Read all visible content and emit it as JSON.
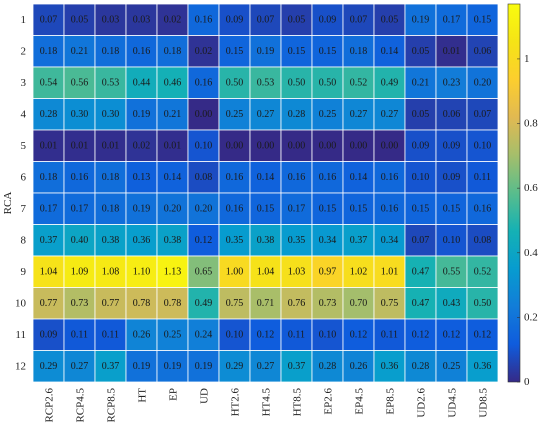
{
  "chart_data": {
    "type": "heatmap",
    "title": "",
    "xlabel": "",
    "ylabel": "RCA",
    "x_categories": [
      "RCP2.6",
      "RCP4.5",
      "RCP8.5",
      "HT",
      "EP",
      "UD",
      "HT2.6",
      "HT4.5",
      "HT8.5",
      "EP2.6",
      "EP4.5",
      "EP8.5",
      "UD2.6",
      "UD4.5",
      "UD8.5"
    ],
    "y_categories": [
      "1",
      "2",
      "3",
      "4",
      "5",
      "6",
      "7",
      "8",
      "9",
      "10",
      "11",
      "12"
    ],
    "values": [
      [
        "0.07",
        "0.05",
        "0.03",
        "0.03",
        "0.02",
        "0.16",
        "0.09",
        "0.07",
        "0.05",
        "0.09",
        "0.07",
        "0.05",
        "0.19",
        "0.17",
        "0.15"
      ],
      [
        "0.18",
        "0.21",
        "0.18",
        "0.16",
        "0.18",
        "0.02",
        "0.15",
        "0.19",
        "0.15",
        "0.15",
        "0.18",
        "0.14",
        "0.05",
        "0.01",
        "0.06"
      ],
      [
        "0.54",
        "0.56",
        "0.53",
        "0.44",
        "0.46",
        "0.16",
        "0.50",
        "0.53",
        "0.50",
        "0.50",
        "0.52",
        "0.49",
        "0.21",
        "0.23",
        "0.20"
      ],
      [
        "0.28",
        "0.30",
        "0.30",
        "0.19",
        "0.21",
        "0.00",
        "0.25",
        "0.27",
        "0.28",
        "0.25",
        "0.27",
        "0.27",
        "0.05",
        "0.06",
        "0.07"
      ],
      [
        "0.01",
        "0.01",
        "0.01",
        "0.02",
        "0.01",
        "0.10",
        "0.00",
        "0.00",
        "0.00",
        "0.00",
        "0.00",
        "0.00",
        "0.09",
        "0.09",
        "0.10"
      ],
      [
        "0.18",
        "0.16",
        "0.18",
        "0.13",
        "0.14",
        "0.08",
        "0.16",
        "0.14",
        "0.16",
        "0.16",
        "0.14",
        "0.16",
        "0.10",
        "0.09",
        "0.11"
      ],
      [
        "0.17",
        "0.17",
        "0.18",
        "0.19",
        "0.20",
        "0.20",
        "0.16",
        "0.15",
        "0.17",
        "0.15",
        "0.15",
        "0.16",
        "0.15",
        "0.15",
        "0.16"
      ],
      [
        "0.37",
        "0.40",
        "0.38",
        "0.36",
        "0.38",
        "0.12",
        "0.35",
        "0.38",
        "0.35",
        "0.34",
        "0.37",
        "0.34",
        "0.07",
        "0.10",
        "0.08"
      ],
      [
        "1.04",
        "1.09",
        "1.08",
        "1.10",
        "1.13",
        "0.65",
        "1.00",
        "1.04",
        "1.03",
        "0.97",
        "1.02",
        "1.01",
        "0.47",
        "0.55",
        "0.52"
      ],
      [
        "0.77",
        "0.73",
        "0.77",
        "0.78",
        "0.78",
        "0.49",
        "0.75",
        "0.71",
        "0.76",
        "0.73",
        "0.70",
        "0.75",
        "0.47",
        "0.43",
        "0.50"
      ],
      [
        "0.09",
        "0.11",
        "0.11",
        "0.26",
        "0.25",
        "0.24",
        "0.10",
        "0.12",
        "0.11",
        "0.10",
        "0.12",
        "0.11",
        "0.12",
        "0.12",
        "0.12"
      ],
      [
        "0.29",
        "0.27",
        "0.37",
        "0.19",
        "0.19",
        "0.19",
        "0.29",
        "0.27",
        "0.37",
        "0.28",
        "0.26",
        "0.36",
        "0.28",
        "0.25",
        "0.36"
      ]
    ],
    "colorbar": {
      "range": [
        0,
        1.17
      ],
      "ticks": [
        "0",
        "0.2",
        "0.4",
        "0.6",
        "0.8",
        "1"
      ],
      "colormap": "parula"
    },
    "grid": true
  }
}
